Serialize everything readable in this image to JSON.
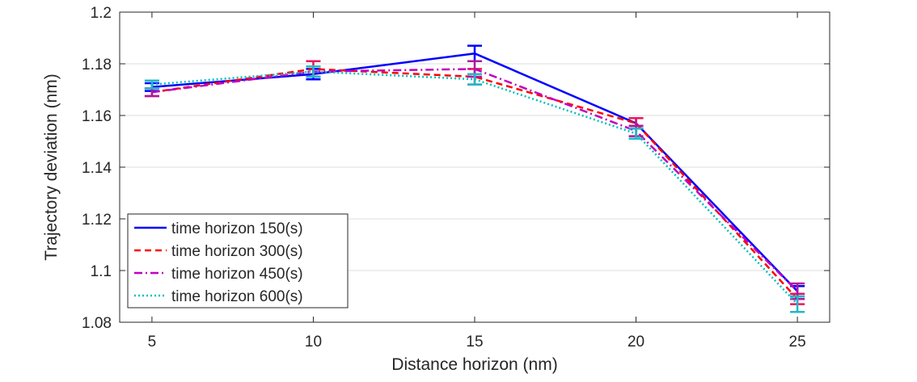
{
  "chart_data": {
    "type": "line",
    "title": "",
    "xlabel": "Distance horizon (nm)",
    "ylabel": "Trajectory deviation (nm)",
    "x": [
      5,
      10,
      15,
      20,
      25
    ],
    "xlim": [
      4,
      26
    ],
    "ylim": [
      1.08,
      1.2
    ],
    "xticks": [
      5,
      10,
      15,
      20,
      25
    ],
    "xtick_labels": [
      "5",
      "10",
      "15",
      "20",
      "25"
    ],
    "yticks": [
      1.08,
      1.1,
      1.12,
      1.14,
      1.16,
      1.18,
      1.2
    ],
    "ytick_labels": [
      "1.08",
      "1.1",
      "1.12",
      "1.14",
      "1.16",
      "1.18",
      "1.2"
    ],
    "grid": "horizontal",
    "legend_position": "bottom-left",
    "series": [
      {
        "name": "time horizon 150(s)",
        "color": "#0000ff",
        "error_color": "#0000ff",
        "dash": "solid",
        "values": [
          1.171,
          1.176,
          1.184,
          1.157,
          1.092
        ],
        "errors": [
          0.0015,
          0.002,
          0.003,
          0.002,
          0.002
        ]
      },
      {
        "name": "time horizon 300(s)",
        "color": "#ff0000",
        "error_color": "#e8175d",
        "dash": "dashed",
        "values": [
          1.169,
          1.178,
          1.175,
          1.157,
          1.089
        ],
        "errors": [
          0.0015,
          0.003,
          0.003,
          0.002,
          0.002
        ]
      },
      {
        "name": "time horizon 450(s)",
        "color": "#c000c0",
        "error_color": "#b0179d",
        "dash": "dashdot",
        "values": [
          1.169,
          1.177,
          1.178,
          1.154,
          1.092
        ],
        "errors": [
          0.0015,
          0.002,
          0.003,
          0.002,
          0.003
        ]
      },
      {
        "name": "time horizon 600(s)",
        "color": "#00bfbf",
        "error_color": "#20b8c8",
        "dash": "dotted",
        "values": [
          1.172,
          1.177,
          1.174,
          1.153,
          1.087
        ],
        "errors": [
          0.0015,
          0.002,
          0.002,
          0.002,
          0.003
        ]
      }
    ]
  }
}
